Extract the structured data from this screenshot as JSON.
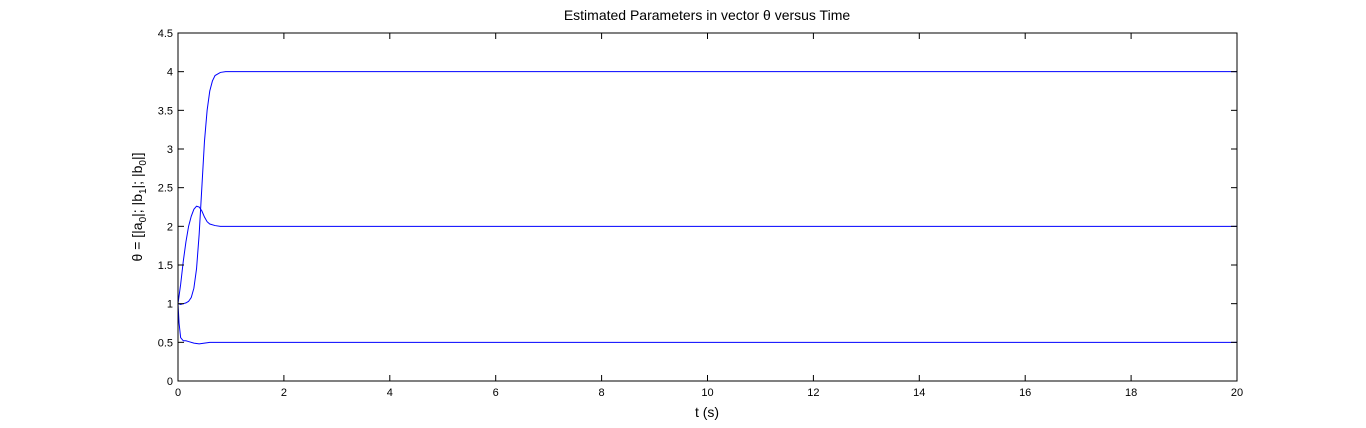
{
  "chart_data": {
    "type": "line",
    "title": "Estimated Parameters in vector θ versus Time",
    "xlabel": "t (s)",
    "ylabel_parts": [
      "θ = [|a",
      "0",
      "|; |b",
      "1",
      "|; |b",
      "0",
      "|]"
    ],
    "xlim": [
      0,
      20
    ],
    "ylim": [
      0,
      4.5
    ],
    "xticks": [
      0,
      2,
      4,
      6,
      8,
      10,
      12,
      14,
      16,
      18,
      20
    ],
    "yticks": [
      0,
      0.5,
      1,
      1.5,
      2,
      2.5,
      3,
      3.5,
      4,
      4.5
    ],
    "grid": false,
    "line_color": "#0000ff",
    "series": [
      {
        "points": [
          [
            0,
            1.0
          ],
          [
            0.05,
            0.99
          ],
          [
            0.1,
            1.0
          ],
          [
            0.15,
            1.01
          ],
          [
            0.2,
            1.03
          ],
          [
            0.25,
            1.08
          ],
          [
            0.3,
            1.2
          ],
          [
            0.35,
            1.45
          ],
          [
            0.4,
            1.9
          ],
          [
            0.45,
            2.5
          ],
          [
            0.5,
            3.1
          ],
          [
            0.55,
            3.5
          ],
          [
            0.6,
            3.75
          ],
          [
            0.65,
            3.88
          ],
          [
            0.7,
            3.95
          ],
          [
            0.8,
            3.99
          ],
          [
            0.9,
            4.0
          ],
          [
            1.0,
            4.0
          ],
          [
            20,
            4.0
          ]
        ]
      },
      {
        "points": [
          [
            0,
            1.0
          ],
          [
            0.05,
            1.25
          ],
          [
            0.1,
            1.55
          ],
          [
            0.15,
            1.8
          ],
          [
            0.2,
            2.0
          ],
          [
            0.25,
            2.13
          ],
          [
            0.3,
            2.22
          ],
          [
            0.35,
            2.26
          ],
          [
            0.4,
            2.25
          ],
          [
            0.45,
            2.2
          ],
          [
            0.5,
            2.12
          ],
          [
            0.55,
            2.06
          ],
          [
            0.6,
            2.03
          ],
          [
            0.7,
            2.01
          ],
          [
            0.8,
            2.0
          ],
          [
            1.0,
            2.0
          ],
          [
            20,
            2.0
          ]
        ]
      },
      {
        "points": [
          [
            0,
            1.0
          ],
          [
            0.02,
            0.75
          ],
          [
            0.05,
            0.56
          ],
          [
            0.1,
            0.52
          ],
          [
            0.15,
            0.52
          ],
          [
            0.2,
            0.51
          ],
          [
            0.3,
            0.49
          ],
          [
            0.4,
            0.48
          ],
          [
            0.5,
            0.49
          ],
          [
            0.6,
            0.5
          ],
          [
            1.0,
            0.5
          ],
          [
            20,
            0.5
          ]
        ]
      }
    ]
  }
}
